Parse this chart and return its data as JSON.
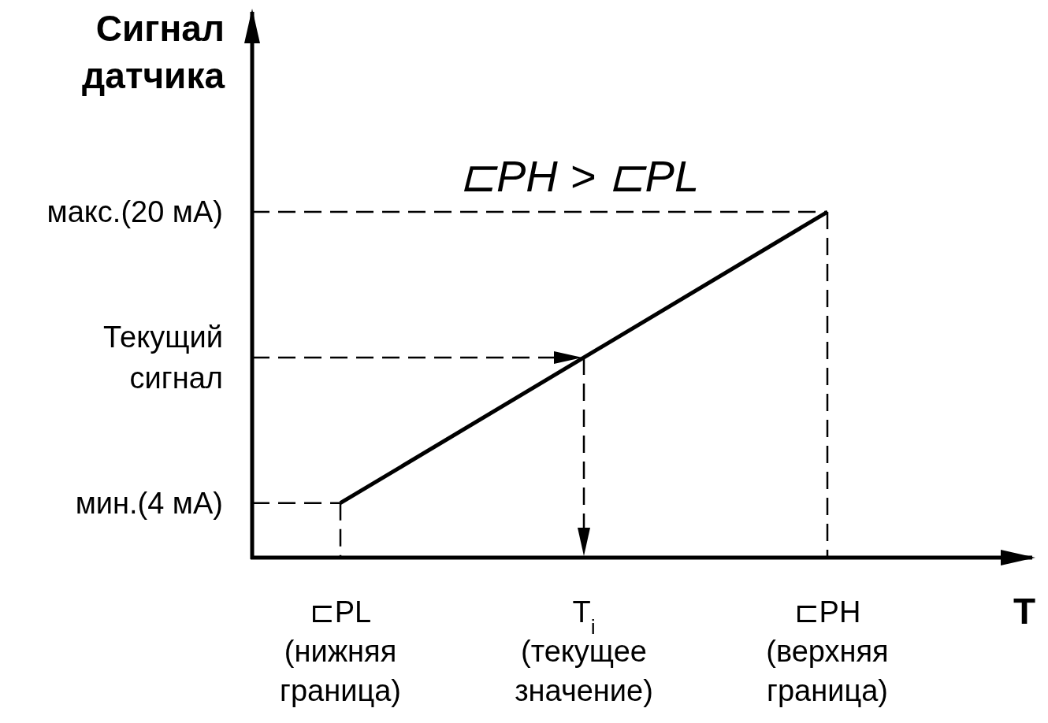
{
  "chart_data": {
    "type": "line",
    "ylabel": "Сигнал\nдатчика",
    "xlabel": "T",
    "categories": [
      "⊏PL\n(нижняя\nграница)",
      "T$_{i}$\n(текущее\nзначение)",
      "⊏PH\n(верхняя\nграница)"
    ],
    "series": [
      {
        "color": "#000000",
        "values": [
          4,
          12,
          20
        ]
      }
    ],
    "ylim": [
      1,
      31
    ],
    "yticks": [
      {
        "value": 4,
        "label": "мин.(4 мА)"
      },
      {
        "value": 12,
        "label": "Текущий\nсигнал"
      },
      {
        "value": 20,
        "label": "макс.(20 мА)"
      }
    ],
    "ref_lines": [
      {
        "axis": "y",
        "value": 4,
        "line_style": "dashed"
      },
      {
        "axis": "y",
        "value": 12,
        "line_style": "dashed"
      },
      {
        "axis": "y",
        "value": 20,
        "line_style": "dashed"
      },
      {
        "axis": "x",
        "value": "⊏PL\n(нижняя\nграница)",
        "line_style": "dashed"
      },
      {
        "axis": "x",
        "value": "T$_{i}$\n(текущее\nзначение)",
        "line_style": "dashed"
      },
      {
        "axis": "x",
        "value": "⊏PH\n(верхняя\nграница)",
        "line_style": "dashed"
      }
    ],
    "annotations": [
      "⊏PH > ⊏PL"
    ],
    "marker": "none",
    "line_style": "solid"
  }
}
